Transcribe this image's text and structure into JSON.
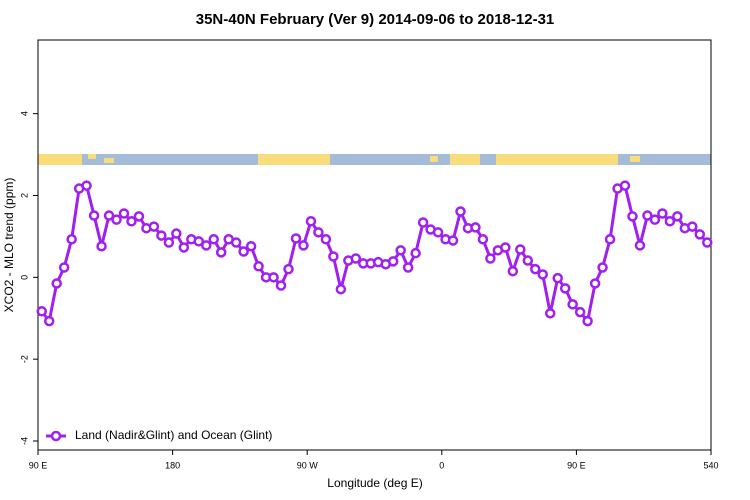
{
  "chart_data": {
    "type": "line",
    "title": "35N-40N February (Ver 9)   2014-09-06 to 2018-12-31",
    "xlabel": "Longitude (deg E)",
    "ylabel": "XCO2 - MLO trend (ppm)",
    "x": [
      92.5,
      97.5,
      102.5,
      107.5,
      112.5,
      117.5,
      122.5,
      127.5,
      132.5,
      137.5,
      142.5,
      147.5,
      152.5,
      157.5,
      162.5,
      167.5,
      172.5,
      177.5,
      182.5,
      187.5,
      192.5,
      197.5,
      202.5,
      207.5,
      212.5,
      217.5,
      222.5,
      227.5,
      232.5,
      237.5,
      242.5,
      247.5,
      252.5,
      257.5,
      262.5,
      267.5,
      272.5,
      277.5,
      282.5,
      287.5,
      292.5,
      297.5,
      302.5,
      307.5,
      312.5,
      317.5,
      322.5,
      327.5,
      332.5,
      337.5,
      342.5,
      347.5,
      352.5,
      357.5,
      362.5,
      367.5,
      372.5,
      377.5,
      382.5,
      387.5,
      392.5,
      397.5,
      402.5,
      407.5,
      412.5,
      417.5,
      422.5,
      427.5,
      432.5,
      437.5,
      442.5,
      447.5,
      452.5,
      457.5,
      462.5,
      467.5,
      472.5,
      477.5,
      482.5,
      487.5,
      492.5,
      497.5,
      502.5,
      507.5,
      512.5,
      517.5,
      522.5,
      527.5,
      532.5,
      537.5
    ],
    "series": [
      {
        "name": "Land (Nadir&Glint) and Ocean (Glint)",
        "color": "#a020f0",
        "values": [
          -0.83,
          -1.07,
          -0.15,
          0.24,
          0.93,
          2.17,
          2.24,
          1.51,
          0.76,
          1.51,
          1.41,
          1.56,
          1.37,
          1.49,
          1.2,
          1.24,
          1.02,
          0.85,
          1.07,
          0.73,
          0.93,
          0.88,
          0.78,
          0.93,
          0.61,
          0.93,
          0.85,
          0.63,
          0.76,
          0.27,
          0.0,
          0.0,
          -0.2,
          0.2,
          0.95,
          0.78,
          1.37,
          1.1,
          0.93,
          0.51,
          -0.29,
          0.41,
          0.46,
          0.34,
          0.34,
          0.37,
          0.32,
          0.39,
          0.66,
          0.24,
          0.59,
          1.34,
          1.17,
          1.1,
          0.93,
          0.9,
          1.61,
          1.2,
          1.22,
          0.93,
          0.46,
          0.66,
          0.73,
          0.15,
          0.68,
          0.41,
          0.2,
          0.07,
          -0.88,
          -0.02,
          -0.27,
          -0.66,
          -0.85,
          -1.07,
          -0.15,
          0.24,
          0.93,
          2.17,
          2.24,
          1.49,
          0.78,
          1.51,
          1.41,
          1.56,
          1.37,
          1.49,
          1.2,
          1.24,
          1.05,
          0.85
        ]
      }
    ],
    "xlim": [
      90,
      540
    ],
    "xticks": [
      {
        "value": 90,
        "label": "90 E"
      },
      180,
      {
        "value": 270,
        "label": "90 W"
      },
      {
        "value": 360,
        "label": "0"
      },
      {
        "value": 450,
        "label": "90 E"
      },
      540
    ],
    "ylim": [
      -4.22,
      5.8
    ],
    "yticks": [
      -4,
      -2,
      0,
      2,
      4
    ],
    "legend": "bottomleft"
  }
}
